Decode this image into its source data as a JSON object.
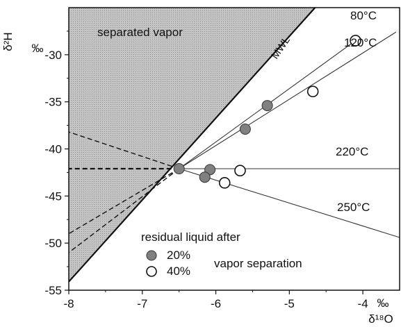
{
  "chart_data": {
    "type": "scatter",
    "xlabel": "δ¹⁸O",
    "ylabel": "δ²H",
    "x_unit": "‰",
    "y_unit": "‰",
    "xlim": [
      -8,
      -3.5
    ],
    "ylim": [
      -55,
      -25
    ],
    "x_ticks": [
      "-8",
      "-7",
      "-6",
      "-5",
      "-4"
    ],
    "y_ticks": [
      "-30",
      "-35",
      "-40",
      "-45",
      "-50",
      "-55"
    ],
    "x_tick_values": [
      -8,
      -7,
      -6,
      -5,
      -4
    ],
    "y_tick_values": [
      -30,
      -35,
      -40,
      -45,
      -50,
      -55
    ],
    "grid": false,
    "origin_point": {
      "x": -6.5,
      "y": -42.1
    },
    "mwl_line": {
      "label": "MWL",
      "points": [
        [
          -8,
          -54.1
        ],
        [
          -4.65,
          -25.0
        ]
      ]
    },
    "separated_vapor_region": {
      "label": "separated vapor",
      "polygon": [
        [
          -8,
          -25.0
        ],
        [
          -4.65,
          -25.0
        ],
        [
          -8,
          -54.1
        ]
      ]
    },
    "temperature_lines": [
      {
        "label": "80°C",
        "x": [
          -6.5,
          -4.1
        ],
        "y": [
          -42.1,
          -28.5
        ]
      },
      {
        "label": "120°C",
        "x": [
          -6.5,
          -3.55
        ],
        "y": [
          -42.1,
          -27.6
        ]
      },
      {
        "label": "220°C",
        "x": [
          -6.5,
          -3.5
        ],
        "y": [
          -42.1,
          -42.1
        ]
      },
      {
        "label": "250°C",
        "x": [
          -6.5,
          -3.5
        ],
        "y": [
          -42.1,
          -49.4
        ]
      }
    ],
    "vapor_lines": [
      {
        "x": [
          -6.5,
          -8
        ],
        "y": [
          -42.1,
          -38.2
        ]
      },
      {
        "x": [
          -6.5,
          -8
        ],
        "y": [
          -42.1,
          -42.1
        ]
      },
      {
        "x": [
          -6.5,
          -8
        ],
        "y": [
          -42.1,
          -49.0
        ]
      },
      {
        "x": [
          -6.5,
          -8
        ],
        "y": [
          -42.1,
          -51.0
        ]
      }
    ],
    "series": [
      {
        "name": "20%",
        "marker": "filled",
        "x": [
          -6.5,
          -5.3,
          -5.6,
          -6.08,
          -6.15
        ],
        "y": [
          -42.1,
          -35.4,
          -37.9,
          -42.2,
          -43.0
        ]
      },
      {
        "name": "40%",
        "marker": "open",
        "x": [
          -4.1,
          -4.68,
          -5.67,
          -5.88
        ],
        "y": [
          -28.5,
          -33.9,
          -42.3,
          -43.6
        ]
      }
    ],
    "legend": {
      "title": "residual liquid after",
      "suffix": "vapor separation",
      "position": "bottom-center"
    }
  },
  "colors": {
    "region_fill": "#bdbdbd",
    "filled_marker": "#808080",
    "line": "#333333",
    "axis": "#111111"
  }
}
